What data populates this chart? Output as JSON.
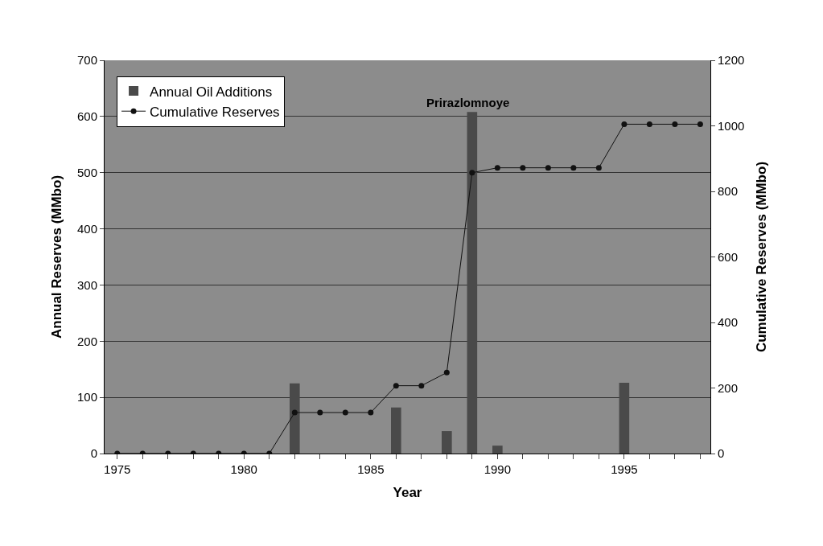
{
  "chart_data": {
    "type": "bar",
    "xlabel": "Year",
    "ylabel": "Annual Reserves (MMbo)",
    "y2label": "Cumulative Reserves (MMbo)",
    "x": [
      1975,
      1976,
      1977,
      1978,
      1979,
      1980,
      1981,
      1982,
      1983,
      1984,
      1985,
      1986,
      1987,
      1988,
      1989,
      1990,
      1991,
      1992,
      1993,
      1994,
      1995,
      1996,
      1997,
      1998
    ],
    "series": [
      {
        "name": "Annual Oil Additions",
        "color": "#4a4a4a",
        "values": [
          0,
          0,
          0,
          0,
          0,
          0,
          0,
          125,
          0,
          0,
          0,
          82,
          0,
          40,
          608,
          14,
          0,
          0,
          0,
          0,
          126,
          0,
          0,
          0
        ]
      },
      {
        "name": "Cumulative Reserves",
        "type": "line",
        "axis": "y2",
        "color": "#111111",
        "marker": "circle",
        "values": [
          0,
          0,
          0,
          0,
          0,
          0,
          0,
          125,
          125,
          125,
          125,
          207,
          207,
          247,
          857,
          872,
          872,
          872,
          872,
          872,
          1005,
          1005,
          1005,
          1005
        ]
      }
    ],
    "xlim": [
      1974.5,
      1998.4
    ],
    "xticks": [
      1975,
      {
        "value": 1976,
        "label": null
      },
      {
        "value": 1977,
        "label": null
      },
      {
        "value": 1978,
        "label": null
      },
      {
        "value": 1979,
        "label": null
      },
      1980,
      {
        "value": 1981,
        "label": null
      },
      {
        "value": 1982,
        "label": null
      },
      {
        "value": 1983,
        "label": null
      },
      {
        "value": 1984,
        "label": null
      },
      1985,
      {
        "value": 1986,
        "label": null
      },
      {
        "value": 1987,
        "label": null
      },
      {
        "value": 1988,
        "label": null
      },
      {
        "value": 1989,
        "label": null
      },
      1990,
      {
        "value": 1991,
        "label": null
      },
      {
        "value": 1992,
        "label": null
      },
      {
        "value": 1993,
        "label": null
      },
      {
        "value": 1994,
        "label": null
      },
      1995,
      {
        "value": 1996,
        "label": null
      },
      {
        "value": 1997,
        "label": null
      },
      {
        "value": 1998,
        "label": null
      }
    ],
    "ylim": [
      0,
      700
    ],
    "yticks": [
      0,
      100,
      200,
      300,
      400,
      500,
      600,
      700
    ],
    "y2lim": [
      0,
      1200
    ],
    "y2ticks": [
      0,
      200,
      400,
      600,
      800,
      1000,
      1200
    ],
    "annotations": [
      "Prirazlomnoye"
    ],
    "grid": "y",
    "legend": "top left"
  }
}
